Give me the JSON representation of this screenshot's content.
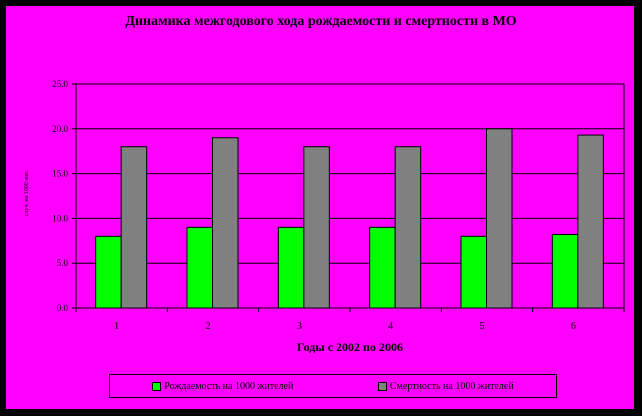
{
  "chart_data": {
    "type": "bar",
    "title": "Динамика межгодового хода рождаемости и смертности в МО",
    "xlabel": "Годы с 2002 по 2006",
    "ylabel": "случ. на 1000 жит.",
    "categories": [
      "1",
      "2",
      "3",
      "4",
      "5",
      "6"
    ],
    "series": [
      {
        "name": "Рождаемость на 1000 жителей",
        "color": "#00ff00",
        "values": [
          8.0,
          9.0,
          9.0,
          9.0,
          8.0,
          8.2
        ]
      },
      {
        "name": "Смертность на 1000 жителей",
        "color": "#808080",
        "values": [
          18.0,
          19.0,
          18.0,
          18.0,
          20.0,
          19.3
        ]
      }
    ],
    "y_ticks": [
      "0.0",
      "5.0",
      "10.0",
      "15.0",
      "20.0",
      "25.0"
    ],
    "ylim": [
      0,
      25
    ],
    "grid": true,
    "legend_position": "bottom"
  }
}
